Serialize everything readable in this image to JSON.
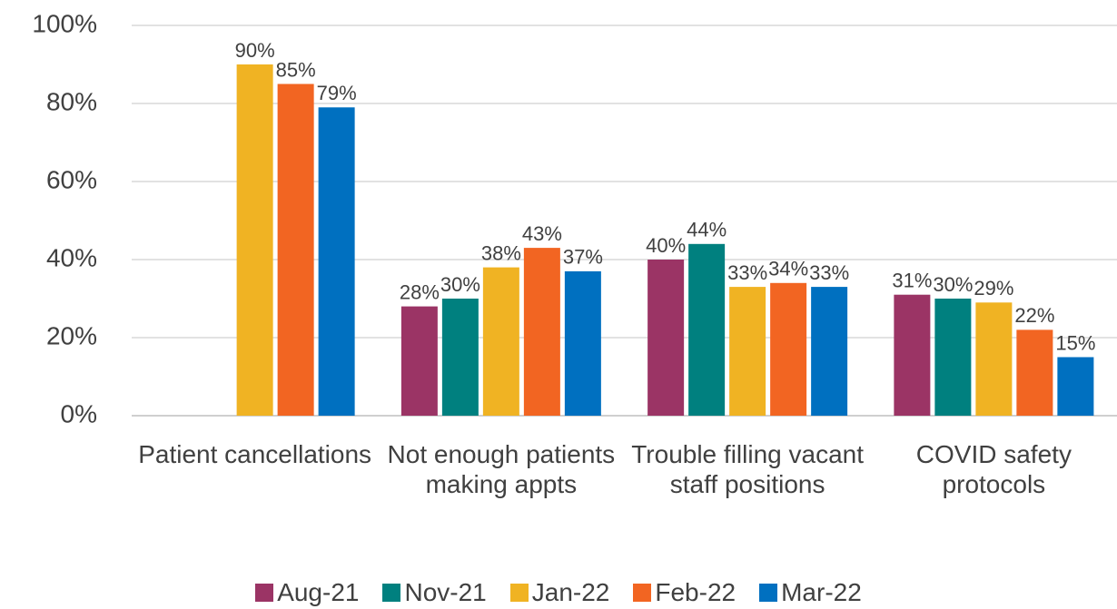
{
  "chart_data": {
    "type": "bar",
    "categories": [
      "Patient cancellations",
      "Not enough patients making appts",
      "Trouble filling vacant staff positions",
      "COVID safety protocols"
    ],
    "series": [
      {
        "name": "Aug-21",
        "color": "#9b3465",
        "values": [
          null,
          28,
          40,
          31
        ],
        "value_labels": [
          null,
          "28%",
          "40%",
          "31%"
        ]
      },
      {
        "name": "Nov-21",
        "color": "#00807f",
        "values": [
          null,
          30,
          44,
          30
        ],
        "value_labels": [
          null,
          "30%",
          "44%",
          "30%"
        ]
      },
      {
        "name": "Jan-22",
        "color": "#f0b323",
        "values": [
          90,
          38,
          33,
          29
        ],
        "value_labels": [
          "90%",
          "38%",
          "33%",
          "29%"
        ]
      },
      {
        "name": "Feb-22",
        "color": "#f26522",
        "values": [
          85,
          43,
          34,
          22
        ],
        "value_labels": [
          "85%",
          "43%",
          "34%",
          "22%"
        ]
      },
      {
        "name": "Mar-22",
        "color": "#0070c0",
        "values": [
          79,
          37,
          33,
          15
        ],
        "value_labels": [
          "79%",
          "37%",
          "33%",
          "15%"
        ]
      }
    ],
    "ylim": [
      0,
      100
    ],
    "yticks": [
      {
        "value": 0,
        "label": "0%"
      },
      {
        "value": 20,
        "label": "20%"
      },
      {
        "value": 40,
        "label": "40%"
      },
      {
        "value": 60,
        "label": "60%"
      },
      {
        "value": 80,
        "label": "80%"
      },
      {
        "value": 100,
        "label": "100%"
      }
    ],
    "grid": true,
    "legend": "bottom"
  }
}
